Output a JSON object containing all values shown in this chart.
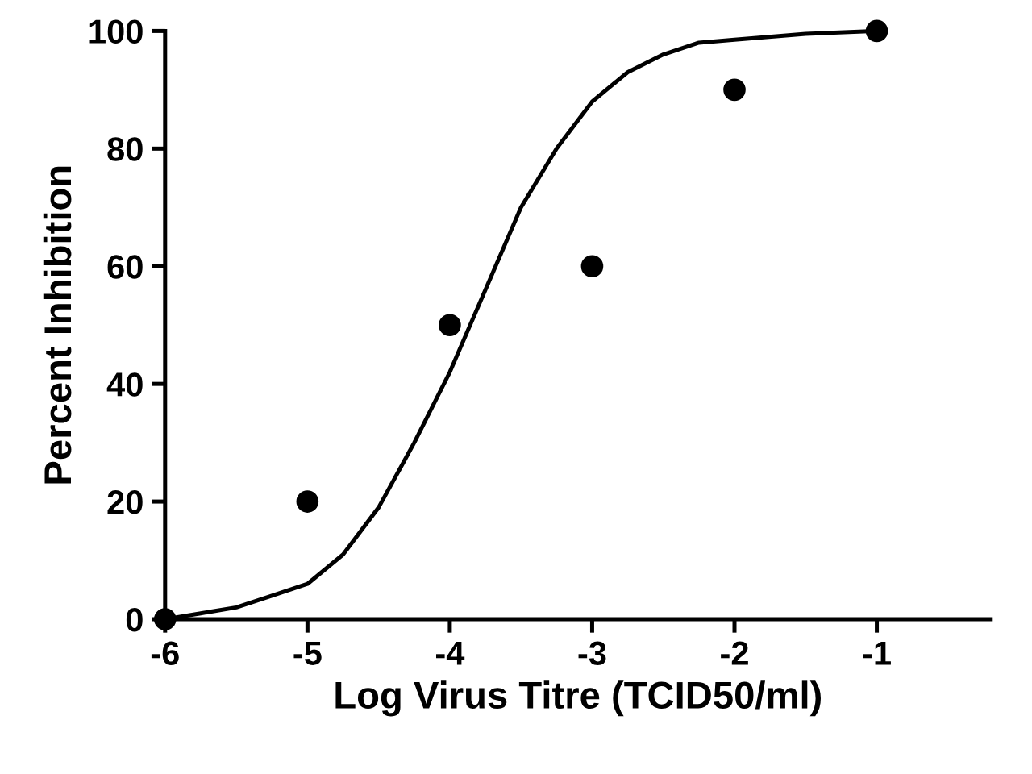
{
  "chart_data": {
    "type": "scatter",
    "xlabel": "Log Virus Titre (TCID50/ml)",
    "ylabel": "Percent Inhibition",
    "xlim": [
      -6,
      -0.2
    ],
    "xticks": [
      {
        "value": -6,
        "label": "-6"
      },
      {
        "value": -5,
        "label": "-5"
      },
      {
        "value": -4,
        "label": "-4"
      },
      {
        "value": -3,
        "label": "-3"
      },
      {
        "value": -2,
        "label": "-2"
      },
      {
        "value": -1,
        "label": "-1"
      }
    ],
    "ylim": [
      0,
      100
    ],
    "yticks": [
      0,
      20,
      40,
      60,
      80,
      100
    ],
    "grid": false,
    "marker": "circle",
    "series": [
      {
        "color": "#000000",
        "x": [
          -6,
          -5,
          -4,
          -3,
          -2,
          -1
        ],
        "values": [
          0,
          20,
          50,
          60,
          90,
          100
        ]
      },
      {
        "type": "line",
        "color": "#000000",
        "line_style": "solid",
        "marker": "none",
        "x": [
          -6,
          -5.75,
          -5.5,
          -5.25,
          -5,
          -4.75,
          -4.5,
          -4.25,
          -4,
          -3.75,
          -3.5,
          -3.25,
          -3,
          -2.75,
          -2.5,
          -2.25,
          -2,
          -1.5,
          -1
        ],
        "values": [
          0,
          1,
          2,
          4,
          6,
          11,
          19,
          30,
          42,
          56,
          70,
          80,
          88,
          93,
          96,
          98,
          98.5,
          99.5,
          100
        ]
      }
    ]
  }
}
